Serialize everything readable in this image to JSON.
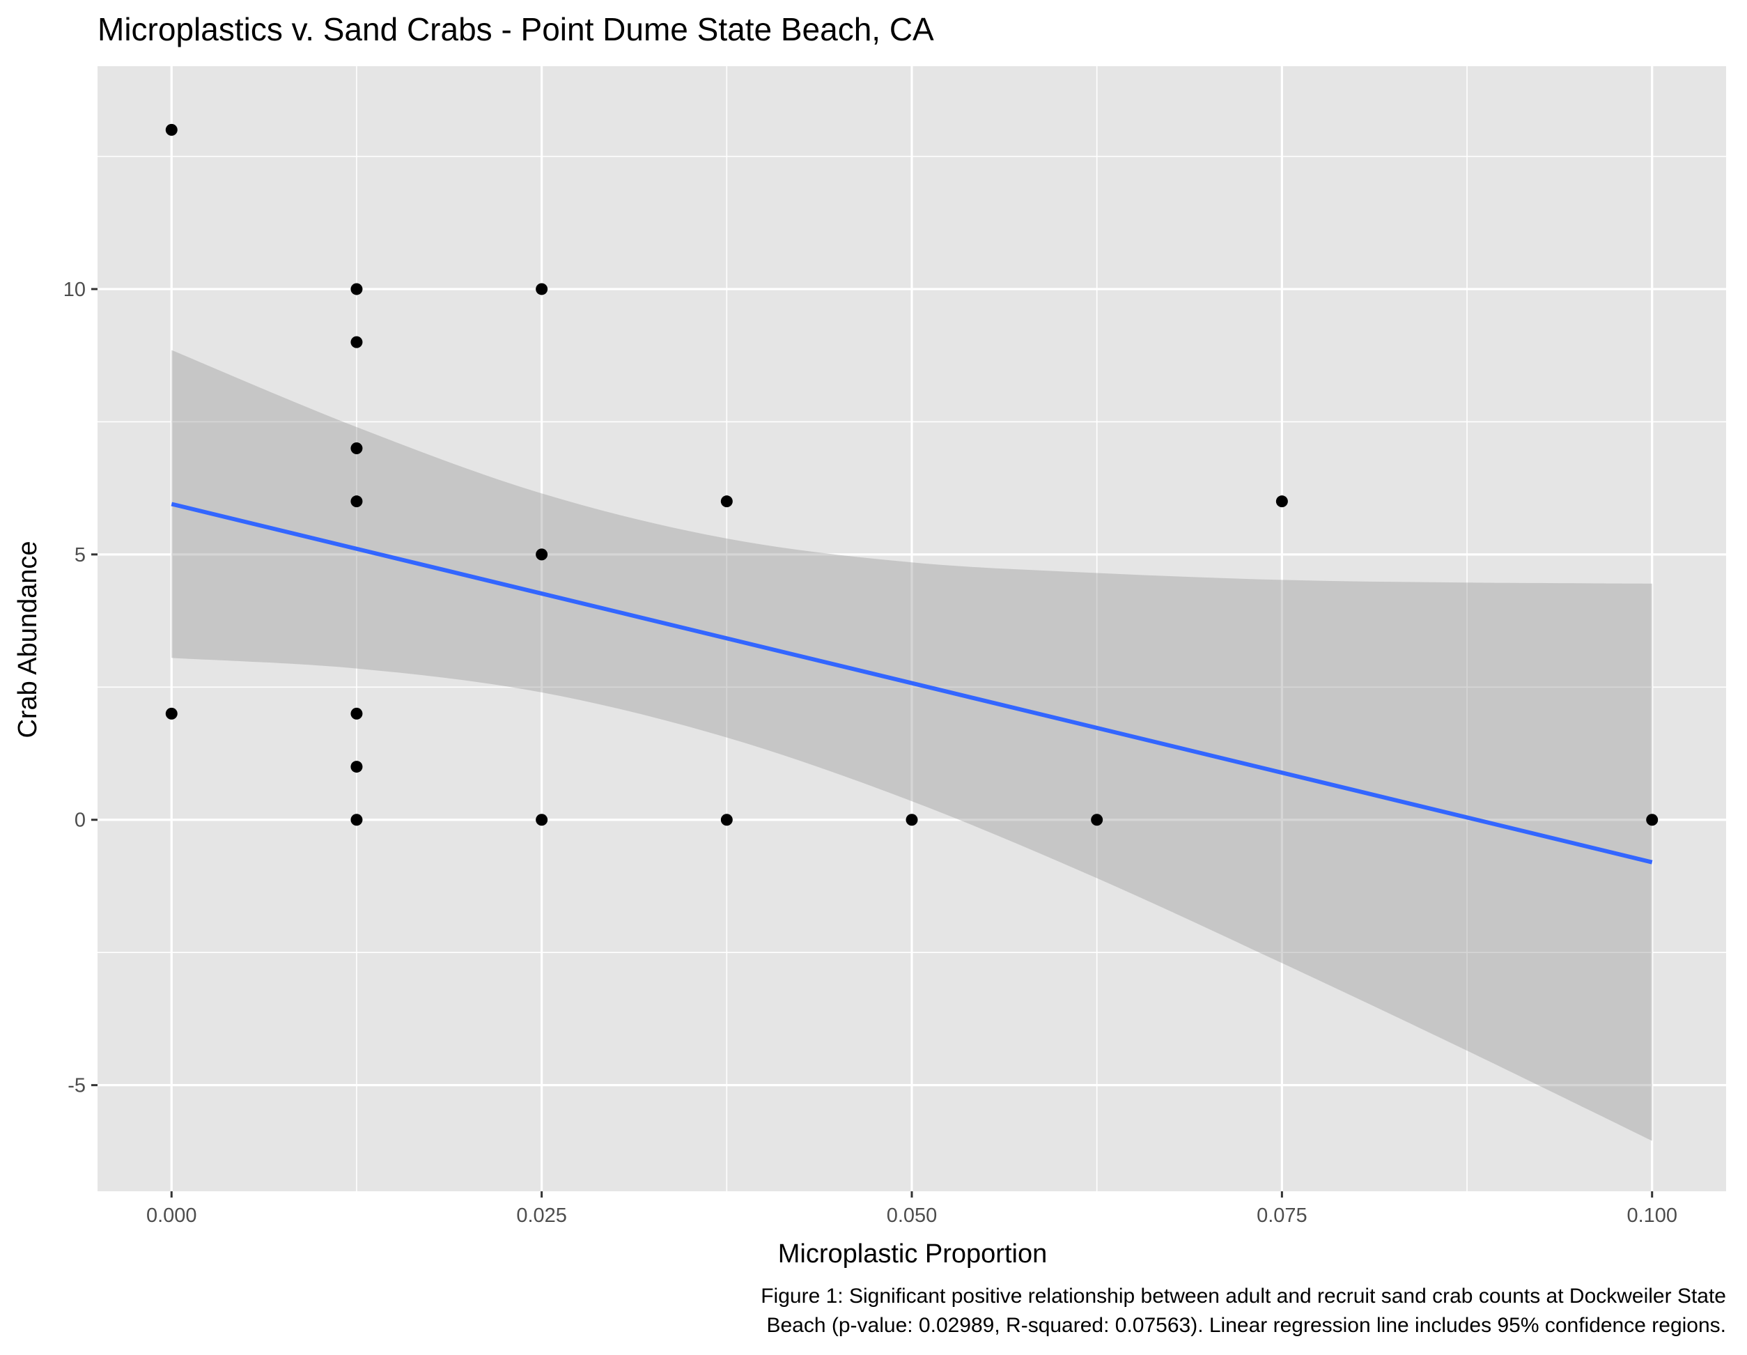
{
  "chart_data": {
    "type": "scatter",
    "title": "Microplastics v. Sand Crabs - Point Dume State Beach, CA",
    "xlabel": "Microplastic Proportion",
    "ylabel": "Crab Abundance",
    "xlim": [
      -0.005,
      0.105
    ],
    "ylim": [
      -7,
      14.2
    ],
    "x_ticks": [
      0.0,
      0.025,
      0.05,
      0.075,
      0.1
    ],
    "x_tick_labels": [
      "0.000",
      "0.025",
      "0.050",
      "0.075",
      "0.100"
    ],
    "y_ticks": [
      -5,
      0,
      5,
      10
    ],
    "y_tick_labels": [
      "-5",
      "0",
      "5",
      "10"
    ],
    "grid": true,
    "legend": "none",
    "points": [
      {
        "x": 0.0,
        "y": 13
      },
      {
        "x": 0.0,
        "y": 2
      },
      {
        "x": 0.0125,
        "y": 10
      },
      {
        "x": 0.0125,
        "y": 9
      },
      {
        "x": 0.0125,
        "y": 7
      },
      {
        "x": 0.0125,
        "y": 6
      },
      {
        "x": 0.0125,
        "y": 2
      },
      {
        "x": 0.0125,
        "y": 1
      },
      {
        "x": 0.0125,
        "y": 0
      },
      {
        "x": 0.025,
        "y": 10
      },
      {
        "x": 0.025,
        "y": 5
      },
      {
        "x": 0.025,
        "y": 0
      },
      {
        "x": 0.0375,
        "y": 6
      },
      {
        "x": 0.0375,
        "y": 0
      },
      {
        "x": 0.05,
        "y": 0
      },
      {
        "x": 0.0625,
        "y": 0
      },
      {
        "x": 0.075,
        "y": 6
      },
      {
        "x": 0.1,
        "y": 0
      }
    ],
    "regression": {
      "start": {
        "x": 0.0,
        "y": 5.95
      },
      "end": {
        "x": 0.1,
        "y": -0.8
      },
      "color": "#3366FF"
    },
    "confidence_band": {
      "upper": [
        {
          "x": 0.0,
          "y": 8.85
        },
        {
          "x": 0.0125,
          "y": 7.4
        },
        {
          "x": 0.025,
          "y": 6.15
        },
        {
          "x": 0.0375,
          "y": 5.3
        },
        {
          "x": 0.05,
          "y": 4.85
        },
        {
          "x": 0.0625,
          "y": 4.65
        },
        {
          "x": 0.075,
          "y": 4.52
        },
        {
          "x": 0.0875,
          "y": 4.47
        },
        {
          "x": 0.1,
          "y": 4.45
        }
      ],
      "lower": [
        {
          "x": 0.0,
          "y": 3.05
        },
        {
          "x": 0.0125,
          "y": 2.85
        },
        {
          "x": 0.025,
          "y": 2.4
        },
        {
          "x": 0.0375,
          "y": 1.55
        },
        {
          "x": 0.05,
          "y": 0.35
        },
        {
          "x": 0.0625,
          "y": -1.1
        },
        {
          "x": 0.075,
          "y": -2.7
        },
        {
          "x": 0.0875,
          "y": -4.35
        },
        {
          "x": 0.1,
          "y": -6.05
        }
      ],
      "color": "#999999"
    },
    "caption": [
      "Figure 1: Significant positive relationship between adult and recruit sand crab counts at Dockweiler State",
      "Beach (p-value: 0.02989, R-squared: 0.07563). Linear regression line includes 95% confidence regions."
    ]
  },
  "colors": {
    "panel_background": "#E5E5E5",
    "grid": "#FFFFFF",
    "points": "#000000",
    "tick_label": "#4D4D4D"
  }
}
